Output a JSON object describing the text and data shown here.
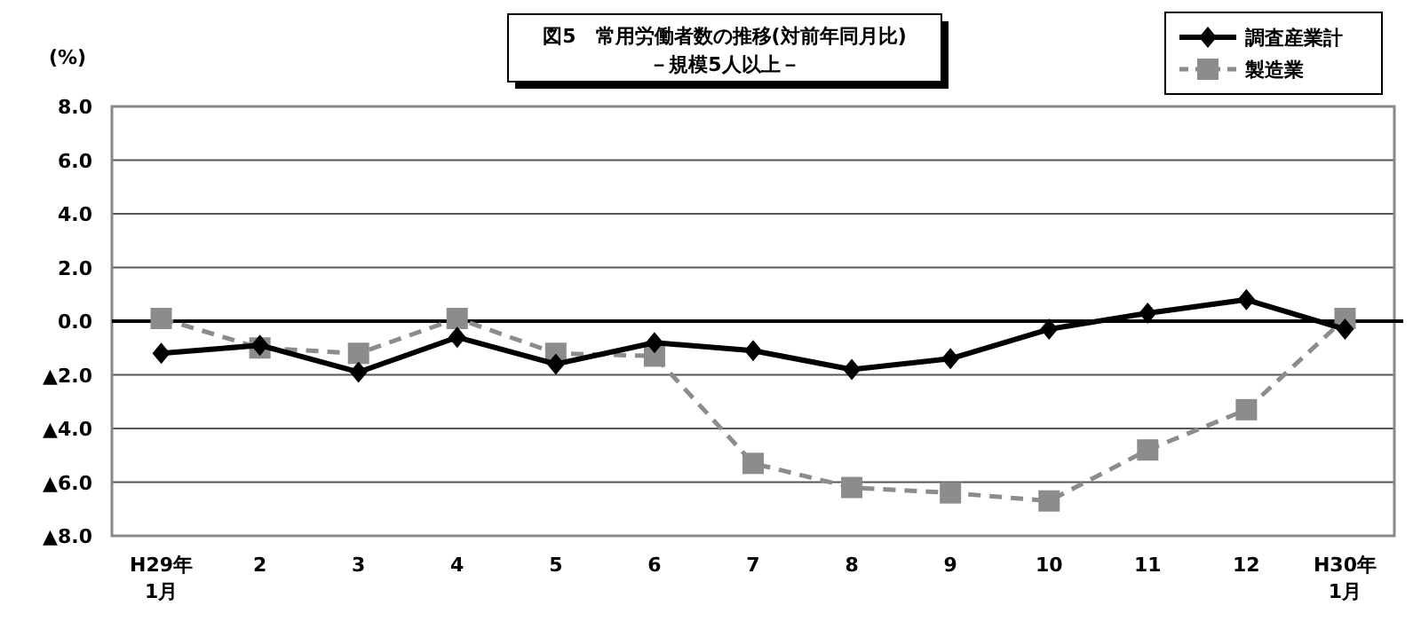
{
  "chart_data": {
    "type": "line",
    "title": "図5　常用労働者数の推移(対前年同月比)",
    "subtitle": "－規模5人以上－",
    "ylabel": "(%)",
    "categories": [
      "H29年 1月",
      "2",
      "3",
      "4",
      "5",
      "6",
      "7",
      "8",
      "9",
      "10",
      "11",
      "12",
      "H30年 1月"
    ],
    "series": [
      {
        "name": "調査産業計",
        "color": "#000000",
        "marker": "diamond",
        "line_style": "solid",
        "values": [
          -1.2,
          -0.9,
          -1.9,
          -0.6,
          -1.6,
          -0.8,
          -1.1,
          -1.8,
          -1.4,
          -0.3,
          0.3,
          0.8,
          -0.3
        ]
      },
      {
        "name": "製造業",
        "color": "#8c8c8c",
        "marker": "square",
        "line_style": "dashed",
        "values": [
          0.1,
          -1.0,
          -1.2,
          0.1,
          -1.2,
          -1.3,
          -5.3,
          -6.2,
          -6.4,
          -6.7,
          -4.8,
          -3.3,
          0.1
        ]
      }
    ],
    "ylim": [
      -8,
      8
    ],
    "yticks": [
      {
        "value": 8,
        "label": "8.0"
      },
      {
        "value": 6,
        "label": "6.0"
      },
      {
        "value": 4,
        "label": "4.0"
      },
      {
        "value": 2,
        "label": "2.0"
      },
      {
        "value": 0,
        "label": "0.0"
      },
      {
        "value": -2,
        "label": "▲2.0"
      },
      {
        "value": -4,
        "label": "▲4.0"
      },
      {
        "value": -6,
        "label": "▲6.0"
      },
      {
        "value": -8,
        "label": "▲8.0"
      }
    ],
    "grid": "y",
    "legend": "top right",
    "ref_lines": [
      {
        "axis": "y",
        "value": 0,
        "color": "#000000"
      }
    ]
  }
}
